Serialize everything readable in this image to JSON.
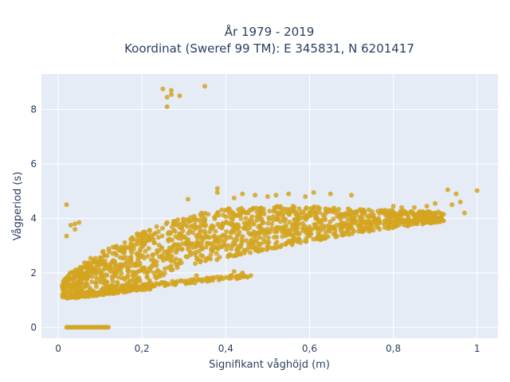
{
  "chart_data": {
    "type": "scatter",
    "title_line1": "År 1979 - 2019",
    "title_line2": "Koordinat (Sweref 99 TM): E 345831, N 6201417",
    "xlabel": "Signifikant våghöjd (m)",
    "ylabel": "Vågperiod (s)",
    "xlim": [
      -0.04,
      1.05
    ],
    "ylim": [
      -0.4,
      9.3
    ],
    "x_ticks": [
      0,
      0.2,
      0.4,
      0.6,
      0.8,
      1
    ],
    "x_tick_labels": [
      "0",
      "0,2",
      "0,4",
      "0,6",
      "0,8",
      "1"
    ],
    "y_ticks": [
      0,
      2,
      4,
      6,
      8
    ],
    "y_tick_labels": [
      "0",
      "2",
      "4",
      "6",
      "8"
    ],
    "grid": true,
    "colors": {
      "plot_bg": "#e5ecf6",
      "grid": "#ffffff",
      "marker": "#d4a520"
    },
    "outliers": [
      [
        0.25,
        8.75
      ],
      [
        0.27,
        8.7
      ],
      [
        0.29,
        8.5
      ],
      [
        0.35,
        8.85
      ],
      [
        0.26,
        8.45
      ],
      [
        0.27,
        8.55
      ],
      [
        0.26,
        8.1
      ],
      [
        0.02,
        4.5
      ],
      [
        0.03,
        3.75
      ],
      [
        0.04,
        3.8
      ],
      [
        0.05,
        3.85
      ],
      [
        0.04,
        3.6
      ],
      [
        0.02,
        3.35
      ],
      [
        0.93,
        5.05
      ],
      [
        1.0,
        5.02
      ],
      [
        0.95,
        4.9
      ],
      [
        0.96,
        4.6
      ],
      [
        0.97,
        4.2
      ],
      [
        0.92,
        4.15
      ],
      [
        0.94,
        4.5
      ],
      [
        0.9,
        4.55
      ],
      [
        0.88,
        4.45
      ],
      [
        0.85,
        4.4
      ],
      [
        0.82,
        4.4
      ],
      [
        0.8,
        4.45
      ],
      [
        0.78,
        4.3
      ],
      [
        0.7,
        4.85
      ],
      [
        0.65,
        4.9
      ],
      [
        0.61,
        4.95
      ],
      [
        0.55,
        4.9
      ],
      [
        0.59,
        4.8
      ],
      [
        0.52,
        4.85
      ],
      [
        0.47,
        4.85
      ],
      [
        0.5,
        4.8
      ],
      [
        0.44,
        4.9
      ],
      [
        0.42,
        4.75
      ],
      [
        0.38,
        4.95
      ],
      [
        0.38,
        5.1
      ],
      [
        0.31,
        4.7
      ],
      [
        0.46,
        1.9
      ],
      [
        0.44,
        2.0
      ],
      [
        0.42,
        2.05
      ],
      [
        0.38,
        1.85
      ],
      [
        0.36,
        1.8
      ],
      [
        0.33,
        1.9
      ],
      [
        0.01,
        1.55
      ],
      [
        0.015,
        1.6
      ],
      [
        0.03,
        1.55
      ]
    ],
    "zero_band": {
      "x": [
        0.02,
        0.12
      ],
      "y": 0
    },
    "main_cloud": {
      "x_range": [
        0.01,
        0.92
      ],
      "lower_edge": [
        [
          0.02,
          1.1
        ],
        [
          0.1,
          1.15
        ],
        [
          0.2,
          1.6
        ],
        [
          0.3,
          2.2
        ],
        [
          0.4,
          2.55
        ],
        [
          0.5,
          2.85
        ],
        [
          0.6,
          3.15
        ],
        [
          0.7,
          3.4
        ],
        [
          0.8,
          3.65
        ],
        [
          0.9,
          3.85
        ]
      ],
      "upper_edge": [
        [
          0.02,
          1.9
        ],
        [
          0.08,
          2.6
        ],
        [
          0.15,
          3.1
        ],
        [
          0.2,
          3.55
        ],
        [
          0.3,
          4.1
        ],
        [
          0.4,
          4.35
        ],
        [
          0.5,
          4.45
        ],
        [
          0.6,
          4.45
        ],
        [
          0.7,
          4.35
        ],
        [
          0.8,
          4.3
        ],
        [
          0.9,
          4.25
        ]
      ]
    },
    "lower_band": {
      "x_range": [
        0.12,
        0.46
      ],
      "y_start": 1.4,
      "y_end": 1.9
    },
    "low_strip": {
      "x_range": [
        0.02,
        0.22
      ],
      "y_start": 1.1,
      "y_end": 1.45
    }
  }
}
